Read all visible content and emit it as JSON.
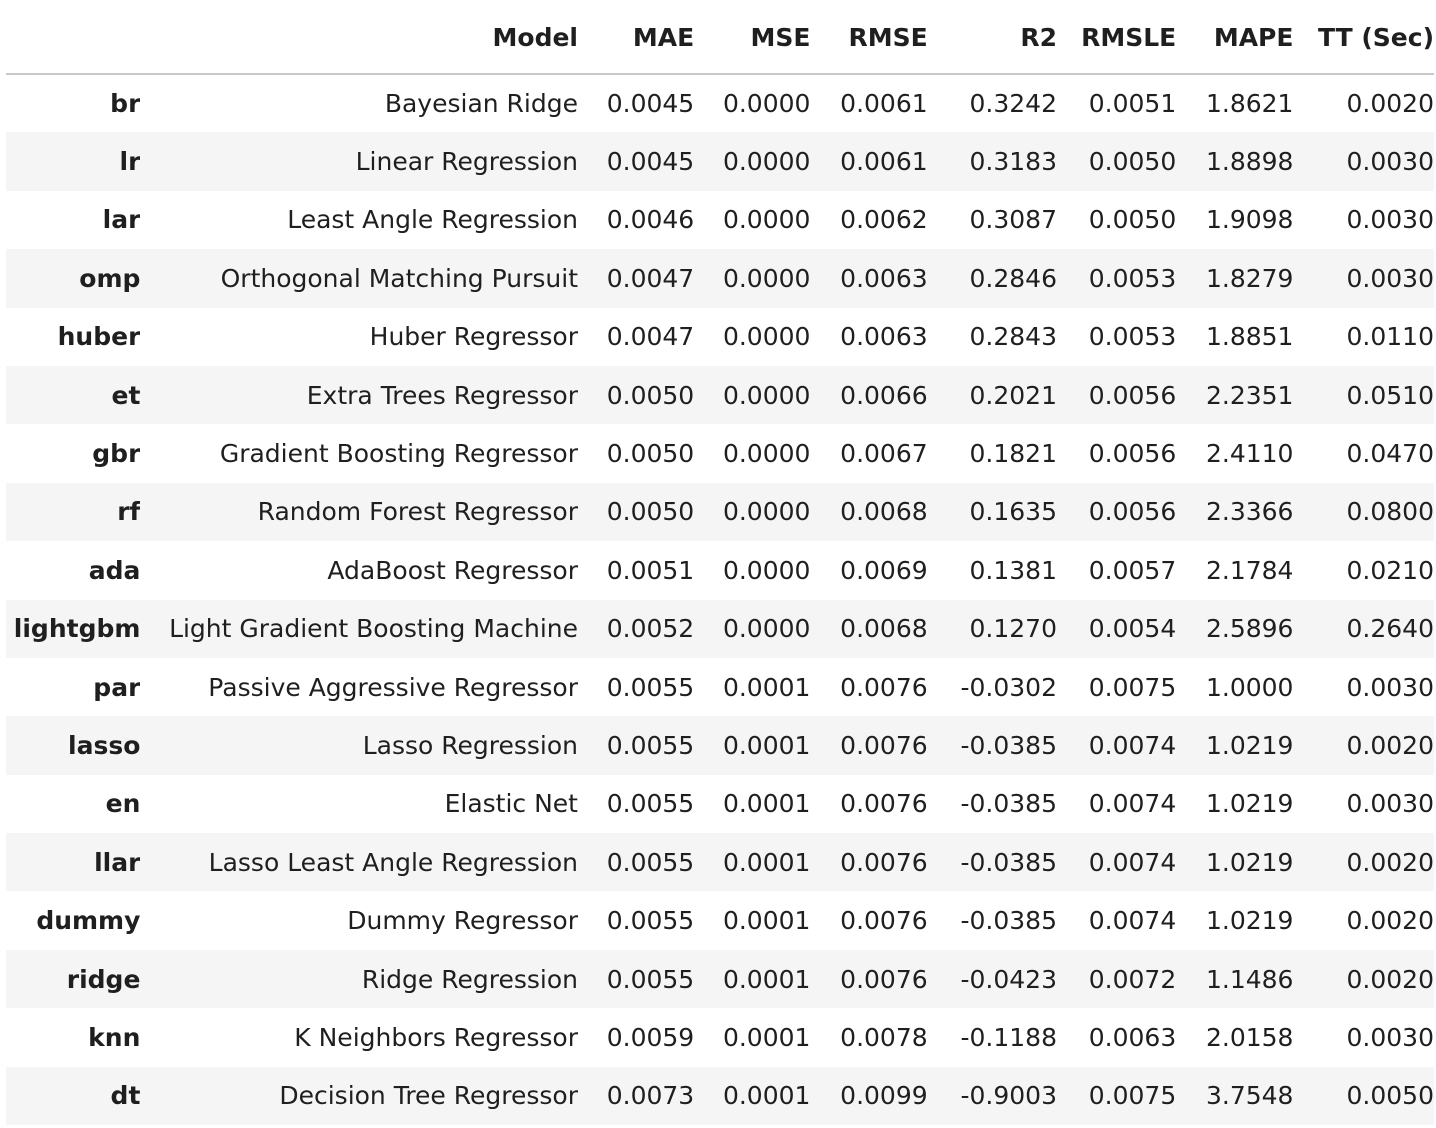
{
  "table": {
    "columns": [
      "",
      "Model",
      "MAE",
      "MSE",
      "RMSE",
      "R2",
      "RMSLE",
      "MAPE",
      "TT (Sec)"
    ],
    "rows": [
      {
        "id": "br",
        "model": "Bayesian Ridge",
        "mae": "0.0045",
        "mse": "0.0000",
        "rmse": "0.0061",
        "r2": "0.3242",
        "rmsle": "0.0051",
        "mape": "1.8621",
        "tt": "0.0020"
      },
      {
        "id": "lr",
        "model": "Linear Regression",
        "mae": "0.0045",
        "mse": "0.0000",
        "rmse": "0.0061",
        "r2": "0.3183",
        "rmsle": "0.0050",
        "mape": "1.8898",
        "tt": "0.0030"
      },
      {
        "id": "lar",
        "model": "Least Angle Regression",
        "mae": "0.0046",
        "mse": "0.0000",
        "rmse": "0.0062",
        "r2": "0.3087",
        "rmsle": "0.0050",
        "mape": "1.9098",
        "tt": "0.0030"
      },
      {
        "id": "omp",
        "model": "Orthogonal Matching Pursuit",
        "mae": "0.0047",
        "mse": "0.0000",
        "rmse": "0.0063",
        "r2": "0.2846",
        "rmsle": "0.0053",
        "mape": "1.8279",
        "tt": "0.0030"
      },
      {
        "id": "huber",
        "model": "Huber Regressor",
        "mae": "0.0047",
        "mse": "0.0000",
        "rmse": "0.0063",
        "r2": "0.2843",
        "rmsle": "0.0053",
        "mape": "1.8851",
        "tt": "0.0110"
      },
      {
        "id": "et",
        "model": "Extra Trees Regressor",
        "mae": "0.0050",
        "mse": "0.0000",
        "rmse": "0.0066",
        "r2": "0.2021",
        "rmsle": "0.0056",
        "mape": "2.2351",
        "tt": "0.0510"
      },
      {
        "id": "gbr",
        "model": "Gradient Boosting Regressor",
        "mae": "0.0050",
        "mse": "0.0000",
        "rmse": "0.0067",
        "r2": "0.1821",
        "rmsle": "0.0056",
        "mape": "2.4110",
        "tt": "0.0470"
      },
      {
        "id": "rf",
        "model": "Random Forest Regressor",
        "mae": "0.0050",
        "mse": "0.0000",
        "rmse": "0.0068",
        "r2": "0.1635",
        "rmsle": "0.0056",
        "mape": "2.3366",
        "tt": "0.0800"
      },
      {
        "id": "ada",
        "model": "AdaBoost Regressor",
        "mae": "0.0051",
        "mse": "0.0000",
        "rmse": "0.0069",
        "r2": "0.1381",
        "rmsle": "0.0057",
        "mape": "2.1784",
        "tt": "0.0210"
      },
      {
        "id": "lightgbm",
        "model": "Light Gradient Boosting Machine",
        "mae": "0.0052",
        "mse": "0.0000",
        "rmse": "0.0068",
        "r2": "0.1270",
        "rmsle": "0.0054",
        "mape": "2.5896",
        "tt": "0.2640"
      },
      {
        "id": "par",
        "model": "Passive Aggressive Regressor",
        "mae": "0.0055",
        "mse": "0.0001",
        "rmse": "0.0076",
        "r2": "-0.0302",
        "rmsle": "0.0075",
        "mape": "1.0000",
        "tt": "0.0030"
      },
      {
        "id": "lasso",
        "model": "Lasso Regression",
        "mae": "0.0055",
        "mse": "0.0001",
        "rmse": "0.0076",
        "r2": "-0.0385",
        "rmsle": "0.0074",
        "mape": "1.0219",
        "tt": "0.0020"
      },
      {
        "id": "en",
        "model": "Elastic Net",
        "mae": "0.0055",
        "mse": "0.0001",
        "rmse": "0.0076",
        "r2": "-0.0385",
        "rmsle": "0.0074",
        "mape": "1.0219",
        "tt": "0.0030"
      },
      {
        "id": "llar",
        "model": "Lasso Least Angle Regression",
        "mae": "0.0055",
        "mse": "0.0001",
        "rmse": "0.0076",
        "r2": "-0.0385",
        "rmsle": "0.0074",
        "mape": "1.0219",
        "tt": "0.0020"
      },
      {
        "id": "dummy",
        "model": "Dummy Regressor",
        "mae": "0.0055",
        "mse": "0.0001",
        "rmse": "0.0076",
        "r2": "-0.0385",
        "rmsle": "0.0074",
        "mape": "1.0219",
        "tt": "0.0020"
      },
      {
        "id": "ridge",
        "model": "Ridge Regression",
        "mae": "0.0055",
        "mse": "0.0001",
        "rmse": "0.0076",
        "r2": "-0.0423",
        "rmsle": "0.0072",
        "mape": "1.1486",
        "tt": "0.0020"
      },
      {
        "id": "knn",
        "model": "K Neighbors Regressor",
        "mae": "0.0059",
        "mse": "0.0001",
        "rmse": "0.0078",
        "r2": "-0.1188",
        "rmsle": "0.0063",
        "mape": "2.0158",
        "tt": "0.0030"
      },
      {
        "id": "dt",
        "model": "Decision Tree Regressor",
        "mae": "0.0073",
        "mse": "0.0001",
        "rmse": "0.0099",
        "r2": "-0.9003",
        "rmsle": "0.0075",
        "mape": "3.7548",
        "tt": "0.0050"
      }
    ]
  },
  "colors": {
    "text": "#1f1f1f",
    "stripe": "#f5f5f5",
    "header_rule": "#c8c8c8",
    "background": "#ffffff"
  }
}
